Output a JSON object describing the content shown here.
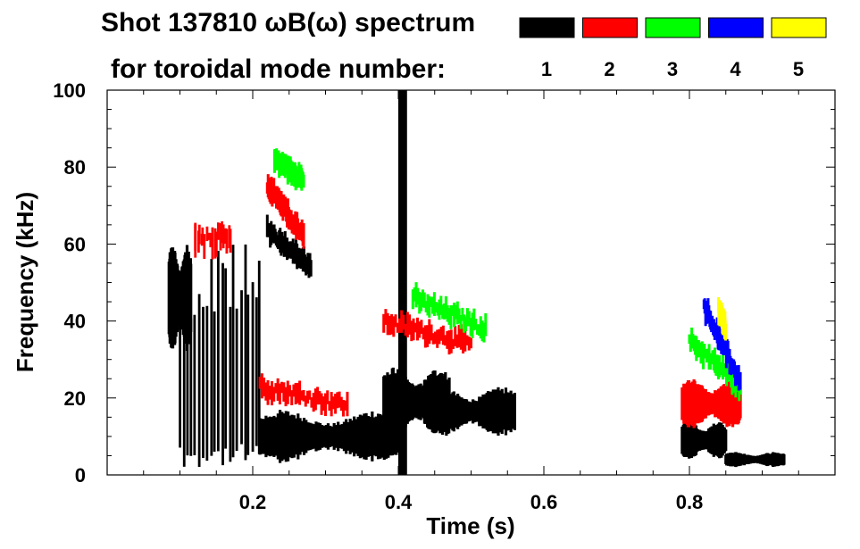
{
  "chart_data": {
    "type": "heatmap",
    "title_line1": "Shot 137810 ωB(ω) spectrum",
    "title_line2": "for toroidal mode number:",
    "xlabel": "Time (s)",
    "ylabel": "Frequency (kHz)",
    "xlim": [
      0.0,
      1.0
    ],
    "ylim": [
      0,
      100
    ],
    "x_ticks": [
      0.2,
      0.4,
      0.6,
      0.8
    ],
    "x_tick_labels": [
      "0.2",
      "0.4",
      "0.6",
      "0.8"
    ],
    "y_ticks": [
      0,
      20,
      40,
      60,
      80,
      100
    ],
    "y_tick_labels": [
      "0",
      "20",
      "40",
      "60",
      "80",
      "100"
    ],
    "legend": [
      {
        "label": "1",
        "color": "#000000"
      },
      {
        "label": "2",
        "color": "#ff0000"
      },
      {
        "label": "3",
        "color": "#00ff00"
      },
      {
        "label": "4",
        "color": "#0000ff"
      },
      {
        "label": "5",
        "color": "#ffff00"
      }
    ],
    "features": [
      {
        "mode": 1,
        "t": [
          0.085,
          0.115
        ],
        "f": [
          32,
          60
        ],
        "kind": "blob"
      },
      {
        "mode": 1,
        "t": [
          0.1,
          0.21
        ],
        "f": [
          2,
          60
        ],
        "kind": "streaks"
      },
      {
        "mode": 1,
        "t": [
          0.21,
          0.4
        ],
        "f": [
          3,
          17
        ],
        "kind": "blob"
      },
      {
        "mode": 1,
        "t": [
          0.38,
          0.47
        ],
        "f": [
          10,
          28
        ],
        "kind": "blob"
      },
      {
        "mode": 1,
        "t": [
          0.44,
          0.56
        ],
        "f": [
          10,
          23
        ],
        "kind": "blob"
      },
      {
        "mode": 1,
        "t": [
          0.4,
          0.412
        ],
        "f": [
          0,
          100
        ],
        "kind": "band"
      },
      {
        "mode": 1,
        "t": [
          0.22,
          0.28
        ],
        "f": [
          54,
          64
        ],
        "kind": "chirp"
      },
      {
        "mode": 1,
        "t": [
          0.79,
          0.85
        ],
        "f": [
          4,
          14
        ],
        "kind": "blob"
      },
      {
        "mode": 1,
        "t": [
          0.85,
          0.93
        ],
        "f": [
          2,
          6
        ],
        "kind": "blob"
      },
      {
        "mode": 2,
        "t": [
          0.22,
          0.27
        ],
        "f": [
          62,
          75
        ],
        "kind": "chirp"
      },
      {
        "mode": 2,
        "t": [
          0.12,
          0.17
        ],
        "f": [
          56,
          66
        ],
        "kind": "streaks"
      },
      {
        "mode": 2,
        "t": [
          0.21,
          0.33
        ],
        "f": [
          18,
          23
        ],
        "kind": "chirp"
      },
      {
        "mode": 2,
        "t": [
          0.38,
          0.5
        ],
        "f": [
          34,
          40
        ],
        "kind": "chirp"
      },
      {
        "mode": 2,
        "t": [
          0.79,
          0.87
        ],
        "f": [
          12,
          25
        ],
        "kind": "blob"
      },
      {
        "mode": 3,
        "t": [
          0.23,
          0.27
        ],
        "f": [
          77,
          82
        ],
        "kind": "chirp"
      },
      {
        "mode": 3,
        "t": [
          0.42,
          0.52
        ],
        "f": [
          38,
          46
        ],
        "kind": "chirp"
      },
      {
        "mode": 3,
        "t": [
          0.8,
          0.87
        ],
        "f": [
          23,
          35
        ],
        "kind": "chirp"
      },
      {
        "mode": 4,
        "t": [
          0.82,
          0.87
        ],
        "f": [
          24,
          44
        ],
        "kind": "chirp"
      },
      {
        "mode": 5,
        "t": [
          0.84,
          0.85
        ],
        "f": [
          38,
          43
        ],
        "kind": "chirp"
      }
    ]
  }
}
